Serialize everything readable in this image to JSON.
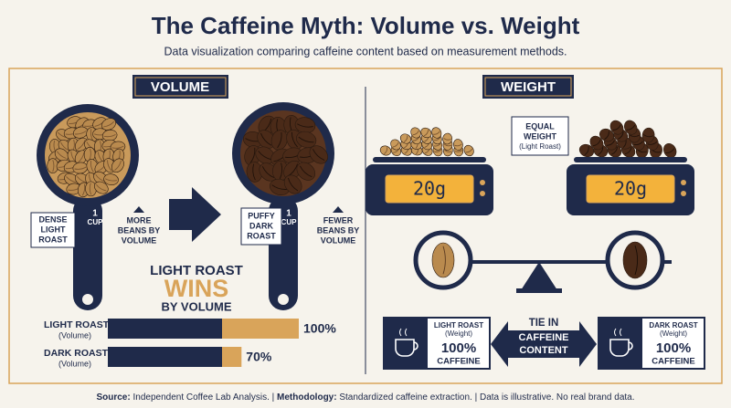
{
  "header": {
    "title": "The Caffeine Myth: Volume vs. Weight",
    "subtitle": "Data visualization comparing caffeine content based on measurement methods."
  },
  "volume": {
    "heading": "VOLUME",
    "scoop_light": {
      "number": "1",
      "unit": "CUP",
      "note": [
        "DENSE",
        "LIGHT",
        "ROAST"
      ]
    },
    "middle_note": [
      "MORE",
      "BEANS BY",
      "VOLUME"
    ],
    "scoop_dark": {
      "number": "1",
      "unit": "CUP",
      "note": [
        "PUFFY",
        "DARK",
        "ROAST"
      ]
    },
    "right_note": [
      "FEWER",
      "BEANS BY",
      "VOLUME"
    ],
    "verdict": [
      "LIGHT ROAST",
      "WINS",
      "BY VOLUME"
    ],
    "bars": {
      "type": "bar",
      "categories": [
        "LIGHT ROAST",
        "DARK ROAST"
      ],
      "sublabels": [
        "(Volume)",
        "(Volume)"
      ],
      "values": [
        100,
        70
      ],
      "value_labels": [
        "100%",
        "70%"
      ],
      "xlim": [
        0,
        100
      ],
      "color": "#d9a45a"
    }
  },
  "weight": {
    "heading": "WEIGHT",
    "equal_note": [
      "EQUAL",
      "WEIGHT",
      "(Light Roast)"
    ],
    "scale_light": "20g",
    "scale_dark": "20g",
    "card_light": {
      "title": "LIGHT ROAST",
      "sub": "(Weight)",
      "value": "100%",
      "label": "CAFFEINE"
    },
    "tie": [
      "TIE IN",
      "CAFFEINE",
      "CONTENT"
    ],
    "card_dark": {
      "title": "DARK ROAST",
      "sub": "(Weight)",
      "value": "100%",
      "label": "CAFFEINE"
    }
  },
  "footer": {
    "source_label": "Source:",
    "source": "Independent Coffee Lab Analysis. |",
    "method_label": "Methodology:",
    "method": "Standardized caffeine extraction. | Data is illustrative. No real brand data."
  }
}
